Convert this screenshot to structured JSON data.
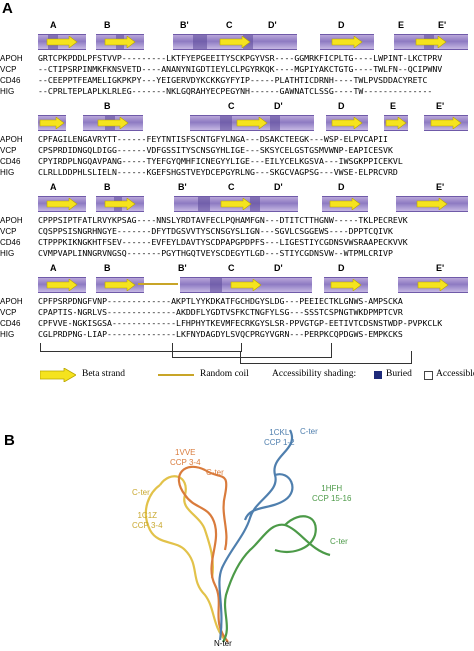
{
  "panel_a_label": "A",
  "panel_b_label": "B",
  "blocks": [
    {
      "labels": [
        "A",
        "B",
        "B'",
        "C",
        "D'",
        "D",
        "E",
        "E'"
      ],
      "rows": [
        {
          "name": "APOH",
          "seq": "GRTCPKPDDLPFSTVVP---------LKTFYEPGEEITYSCKPGYVSR----GGMRKFICPLTG----LWPINT-LKCTPRV"
        },
        {
          "name": "VCP",
          "seq": "--CTIPSRPINMKFKNSVETD----ANANYNIGDTIEYLCLPGYRKQK----MGPIYAKCTGTG----TWLFN--QCIPWNV"
        },
        {
          "name": "CD46",
          "seq": "--CEEPPTFEAMELIGKPKPY---YEIGERVDYKCKKGYFYIP-----PLATHTICDRNH----TWLPVSDDACYRETC"
        },
        {
          "name": "HIG",
          "seq": "--CPRLTEPLAPLKLRLEG-------NKLGQRAHYECPEGYNH------GAWNATCLSSG----TW--------------"
        }
      ]
    },
    {
      "labels": [
        "B",
        "C",
        "D'",
        "D",
        "E",
        "E'"
      ],
      "rows": [
        {
          "name": "APOH",
          "seq": "CPFAGILENGAVRYTT------FEYTNTISFSCNTGFYLNGA---DSAKCTEEGK---WSP-ELPVCAPII"
        },
        {
          "name": "VCP",
          "seq": "CPSPRDIDNGQLDIGG------VDFGSSITYSCNSGYHLIGE---SKSYCELGSTGSMVWNP-EAPICESVK"
        },
        {
          "name": "CD46",
          "seq": "CPYIRDPLNGQAVPANG-----TYEFGYQMHFICNEGYYLIGE---EILYCELKGSVA---IWSGKPPICEKVL"
        },
        {
          "name": "HIG",
          "seq": "CLRLLDDPHLSLIELN------KGEFSHGSTVEYDCEPGYRLNG---SKGCVAGPSG---VWSE-ELPRCVRD"
        }
      ]
    },
    {
      "labels": [
        "A",
        "B",
        "B'",
        "C",
        "D'",
        "D",
        "E'"
      ],
      "rows": [
        {
          "name": "APOH",
          "seq": "CPPPSIPTFATLRVYKPSAG----NNSLYRDTAVFECLPQHAMFGN---DTITCTTHGNW-----TKLPECREVK"
        },
        {
          "name": "VCP",
          "seq": "CQSPPSISNGRHNGYE-------DFYTDGSVVTYSCNSGYSLIGN---SGVLCSGGEWS----DPPTCQIVK"
        },
        {
          "name": "CD46",
          "seq": "CTPPPKIKNGKHTFSEV------EVFEYLDAVTYSCDPAPGPDPFS---LIGESTIYCGDNSVWSRAAPECKVVK"
        },
        {
          "name": "HIG",
          "seq": "CVMPVAPLINNGRVNGSQ-------PGYTHGQTVEYSCDEGYTLGD---STIYCGDNSVW--WTPMLCRIVP"
        }
      ]
    },
    {
      "labels": [
        "A",
        "B",
        "B'",
        "C",
        "D'",
        "D",
        "E'"
      ],
      "rows": [
        {
          "name": "APOH",
          "seq": "CPFPSRPDNGFVNP-------------AKPTLYYKDKATFGCHDGYSLDG---PEEIECTKLGNWS-AMPSCKA"
        },
        {
          "name": "VCP",
          "seq": "CPAPTIS-NGRLVS--------------AKDDFLYGDTVSFKCTNGFYLSG---SSSTCSPNGTWKDPMPTCVR"
        },
        {
          "name": "CD46",
          "seq": "CPFVVE-NGKISGSA-------------LFHPHYTKEVMFECRKGYSLSR-PPVGTGP-EETIVTCDSNSTWDP-PVPKCLK"
        },
        {
          "name": "HIG",
          "seq": "CGLPRDPNG-LIAP--------------LKFNYDAGDYLSVQCPRGYVGRN---PERPKCQPDGWS-EMPKCKS"
        }
      ]
    }
  ],
  "legend": {
    "beta_strand": "Beta strand",
    "random_coil": "Random coil",
    "shading_title": "Accessibility shading:",
    "buried": "Buried",
    "accessible": "Accessible"
  },
  "structures": [
    {
      "pdb": "1CKL",
      "ccp": "CCP 1-2",
      "color": "#4f7fae",
      "cter": "C-ter"
    },
    {
      "pdb": "1VVE",
      "ccp": "CCP 3-4",
      "color": "#d97b3c",
      "cter": "C-ter"
    },
    {
      "pdb": "1C1Z",
      "ccp": "CCP 3-4",
      "color": "#e2c24a",
      "cter": "C-ter"
    },
    {
      "pdb": "1HFH",
      "ccp": "CCP 15-16",
      "color": "#4c9a48",
      "cter": "C-ter"
    }
  ],
  "nter_label": "N-ter",
  "colors": {
    "beta_arrow": "#f5e31e",
    "coil": "#c8a528",
    "bar": "#8d7ac2",
    "buried": "#1e2a7a",
    "accessible": "#ffffff",
    "yellow_highlight": "#f3e33c",
    "blue_highlight": "#2f95cf"
  }
}
